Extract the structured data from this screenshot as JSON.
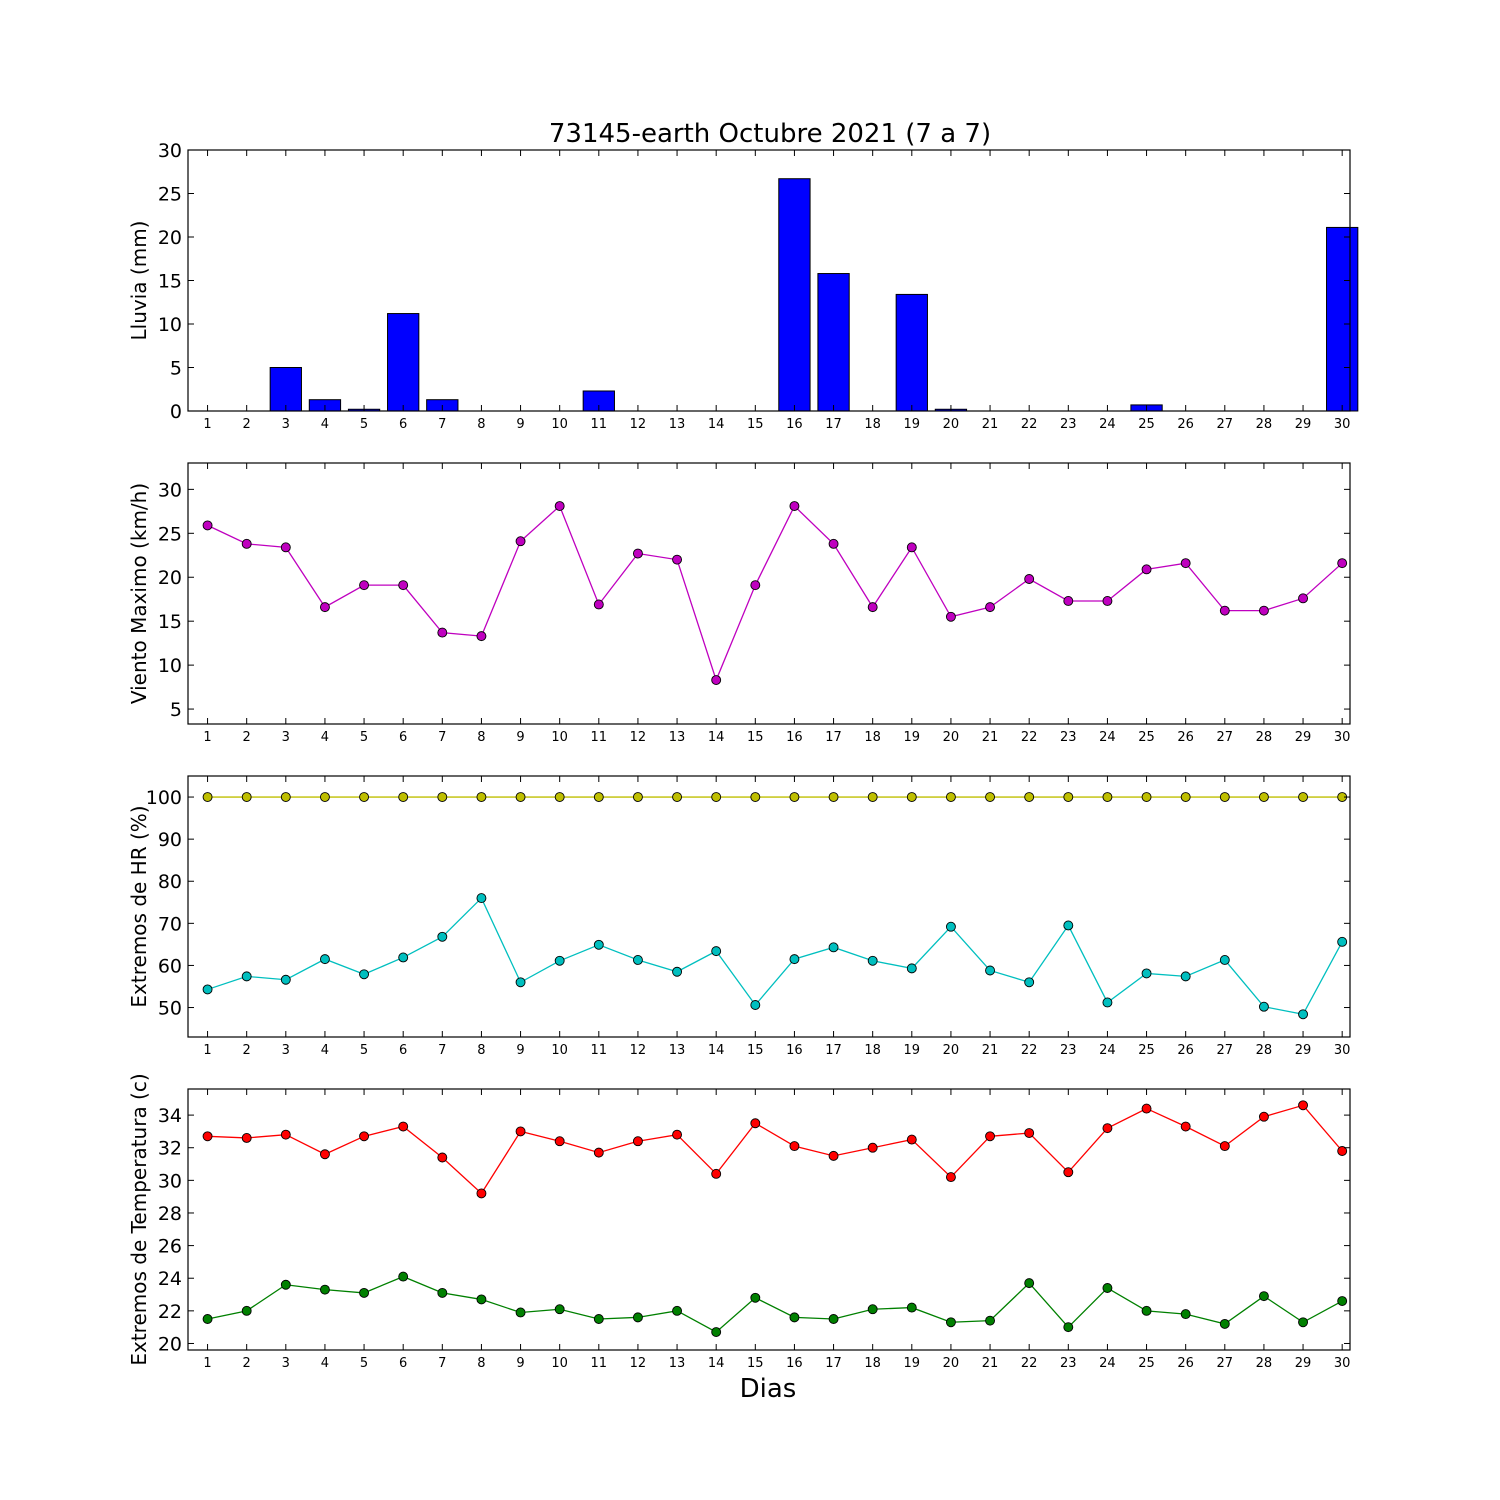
{
  "title": "73145-earth Octubre 2021  (7 a 7)",
  "xlabel": "Dias",
  "days": [
    1,
    2,
    3,
    4,
    5,
    6,
    7,
    8,
    9,
    10,
    11,
    12,
    13,
    14,
    15,
    16,
    17,
    18,
    19,
    20,
    21,
    22,
    23,
    24,
    25,
    26,
    27,
    28,
    29,
    30
  ],
  "chart_data": [
    {
      "type": "bar",
      "ylabel": "Lluvia (mm)",
      "ylim": [
        0,
        30
      ],
      "yticks": [
        0,
        5,
        10,
        15,
        20,
        25,
        30
      ],
      "categories": [
        1,
        2,
        3,
        4,
        5,
        6,
        7,
        8,
        9,
        10,
        11,
        12,
        13,
        14,
        15,
        16,
        17,
        18,
        19,
        20,
        21,
        22,
        23,
        24,
        25,
        26,
        27,
        28,
        29,
        30
      ],
      "series": [
        {
          "color": "#0000ff",
          "values": [
            0,
            0,
            5.0,
            1.3,
            0.2,
            11.2,
            1.3,
            0,
            0,
            0,
            2.3,
            0,
            0,
            0,
            0,
            26.7,
            15.8,
            0,
            13.4,
            0.2,
            0,
            0,
            0,
            0,
            0.7,
            0,
            0,
            0,
            0,
            21.1
          ]
        }
      ]
    },
    {
      "type": "line",
      "ylabel": "Viento Maximo (km/h)",
      "ylim": [
        3.3,
        33
      ],
      "yticks": [
        5,
        10,
        15,
        20,
        25,
        30
      ],
      "x": [
        1,
        2,
        3,
        4,
        5,
        6,
        7,
        8,
        9,
        10,
        11,
        12,
        13,
        14,
        15,
        16,
        17,
        18,
        19,
        20,
        21,
        22,
        23,
        24,
        25,
        26,
        27,
        28,
        29,
        30
      ],
      "series": [
        {
          "color": "#bf00bf",
          "values": [
            25.9,
            23.8,
            23.4,
            16.6,
            19.1,
            19.1,
            13.7,
            13.3,
            24.1,
            28.1,
            16.9,
            22.7,
            22.0,
            8.3,
            19.1,
            28.1,
            23.8,
            16.6,
            23.4,
            15.5,
            16.6,
            19.8,
            17.3,
            17.3,
            20.9,
            21.6,
            16.2,
            16.2,
            17.6,
            21.6
          ]
        }
      ]
    },
    {
      "type": "line",
      "ylabel": "Extremos de HR (%)",
      "ylim": [
        43,
        105
      ],
      "yticks": [
        50,
        60,
        70,
        80,
        90,
        100
      ],
      "x": [
        1,
        2,
        3,
        4,
        5,
        6,
        7,
        8,
        9,
        10,
        11,
        12,
        13,
        14,
        15,
        16,
        17,
        18,
        19,
        20,
        21,
        22,
        23,
        24,
        25,
        26,
        27,
        28,
        29,
        30
      ],
      "series": [
        {
          "color": "#bfbf00",
          "values": [
            100,
            100,
            100,
            100,
            100,
            100,
            100,
            100,
            100,
            100,
            100,
            100,
            100,
            100,
            100,
            100,
            100,
            100,
            100,
            100,
            100,
            100,
            100,
            100,
            100,
            100,
            100,
            100,
            100,
            100
          ]
        },
        {
          "color": "#00bfbf",
          "values": [
            54.3,
            57.4,
            56.6,
            61.5,
            57.9,
            61.9,
            66.8,
            76.0,
            56.0,
            61.1,
            64.9,
            61.3,
            58.5,
            63.4,
            50.6,
            61.5,
            64.3,
            61.1,
            59.3,
            69.2,
            58.8,
            56.0,
            69.5,
            51.2,
            58.1,
            57.4,
            61.3,
            50.2,
            48.4,
            65.6
          ]
        }
      ]
    },
    {
      "type": "line",
      "ylabel": "Extremos de Temperatura (c)",
      "ylim": [
        19.6,
        35.6
      ],
      "yticks": [
        20,
        22,
        24,
        26,
        28,
        30,
        32,
        34
      ],
      "x": [
        1,
        2,
        3,
        4,
        5,
        6,
        7,
        8,
        9,
        10,
        11,
        12,
        13,
        14,
        15,
        16,
        17,
        18,
        19,
        20,
        21,
        22,
        23,
        24,
        25,
        26,
        27,
        28,
        29,
        30
      ],
      "series": [
        {
          "color": "#ff0000",
          "values": [
            32.7,
            32.6,
            32.8,
            31.6,
            32.7,
            33.3,
            31.4,
            29.2,
            33.0,
            32.4,
            31.7,
            32.4,
            32.8,
            30.4,
            33.5,
            32.1,
            31.5,
            32.0,
            32.5,
            30.2,
            32.7,
            32.9,
            30.5,
            33.2,
            34.4,
            33.3,
            32.1,
            33.9,
            34.6,
            31.8
          ]
        },
        {
          "color": "#008000",
          "values": [
            21.5,
            22.0,
            23.6,
            23.3,
            23.1,
            24.1,
            23.1,
            22.7,
            21.9,
            22.1,
            21.5,
            21.6,
            22.0,
            20.7,
            22.8,
            21.6,
            21.5,
            22.1,
            22.2,
            21.3,
            21.4,
            23.7,
            21.0,
            23.4,
            22.0,
            21.8,
            21.2,
            22.9,
            21.3,
            22.6
          ]
        }
      ]
    }
  ]
}
